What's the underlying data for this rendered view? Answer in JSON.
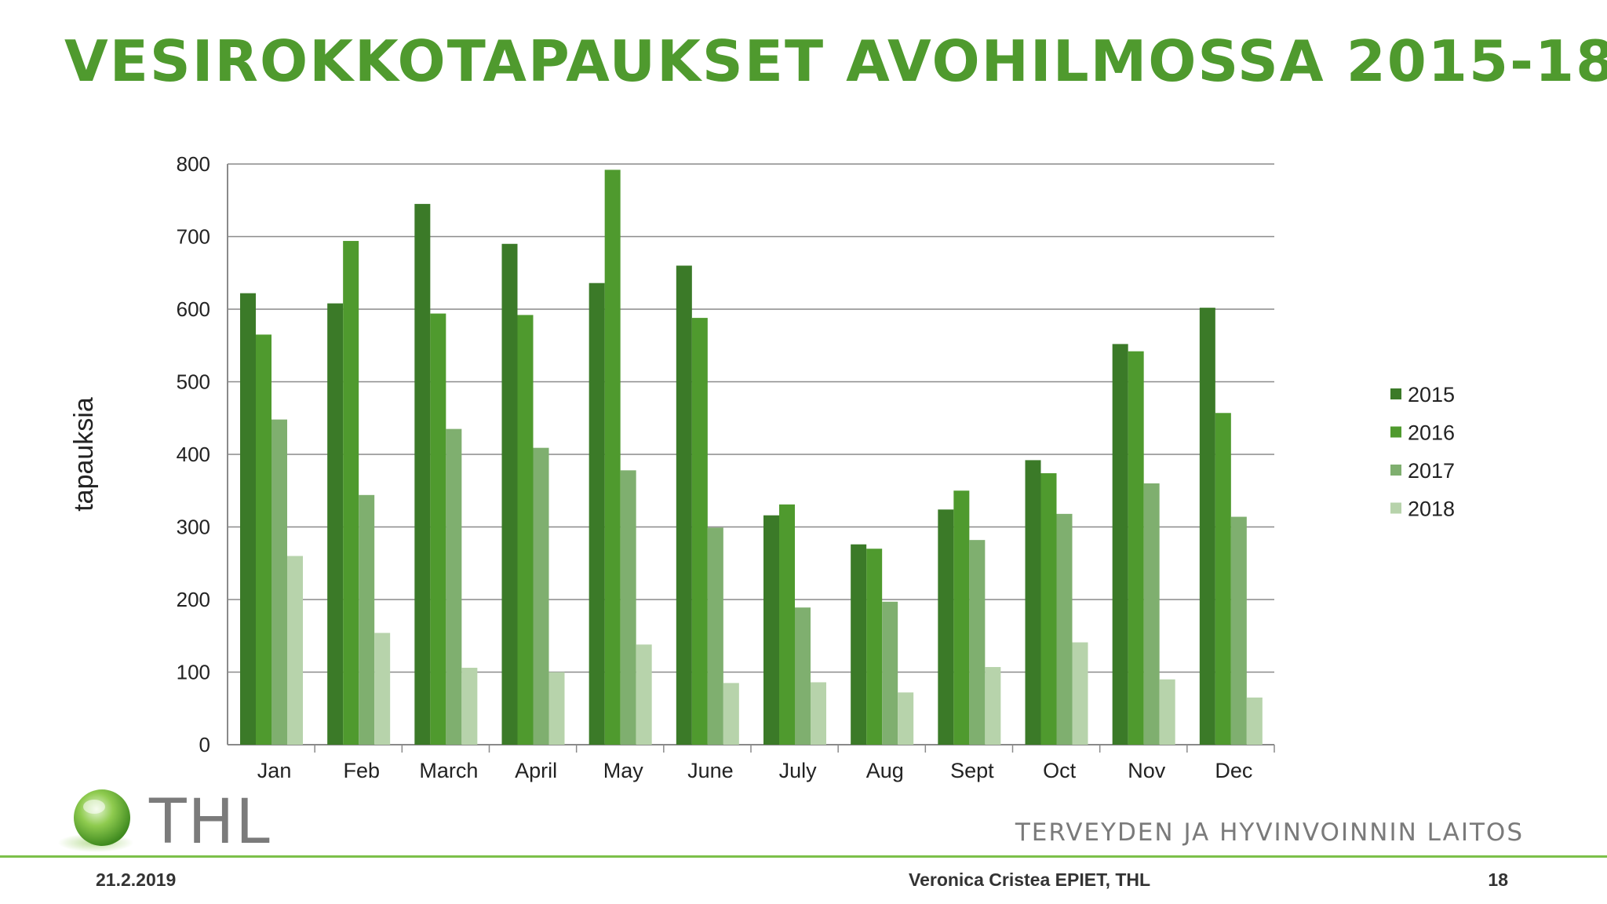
{
  "slide": {
    "title": "VESIROKKOTAPAUKSET AVOHILMOSSA 2015-18",
    "logo_text": "THL",
    "org_name": "TERVEYDEN JA HYVINVOINNIN LAITOS",
    "footer": {
      "date": "21.2.2019",
      "author": "Veronica Cristea EPIET, THL",
      "page": "18"
    }
  },
  "colors": {
    "title": "#4f9a2e",
    "series": [
      "#3b7a28",
      "#4f9a2e",
      "#7faf6f",
      "#b7d3ab"
    ],
    "footer_line": "#7cc04a"
  },
  "chart_data": {
    "type": "bar",
    "title": "",
    "xlabel": "",
    "ylabel": "tapauksia",
    "ylim": [
      0,
      800
    ],
    "yticks": [
      0,
      100,
      200,
      300,
      400,
      500,
      600,
      700,
      800
    ],
    "grid": true,
    "legend_position": "right",
    "categories": [
      "Jan",
      "Feb",
      "March",
      "April",
      "May",
      "June",
      "July",
      "Aug",
      "Sept",
      "Oct",
      "Nov",
      "Dec"
    ],
    "series": [
      {
        "name": "2015",
        "values": [
          622,
          608,
          745,
          690,
          636,
          660,
          316,
          276,
          324,
          392,
          552,
          602
        ]
      },
      {
        "name": "2016",
        "values": [
          565,
          694,
          594,
          592,
          792,
          588,
          331,
          270,
          350,
          374,
          542,
          457
        ]
      },
      {
        "name": "2017",
        "values": [
          448,
          344,
          435,
          409,
          378,
          299,
          189,
          197,
          282,
          318,
          360,
          314
        ]
      },
      {
        "name": "2018",
        "values": [
          260,
          154,
          106,
          100,
          138,
          85,
          86,
          72,
          107,
          141,
          90,
          65
        ]
      }
    ]
  }
}
